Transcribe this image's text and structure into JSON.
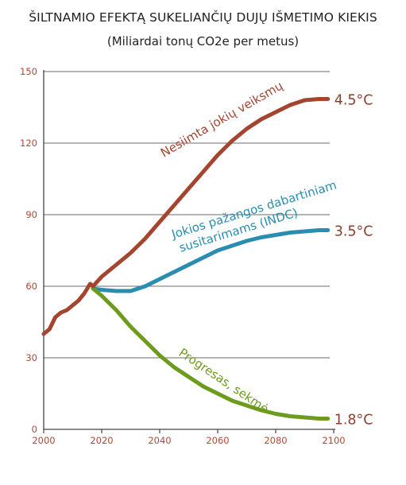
{
  "chart_data": {
    "type": "line",
    "title": "ŠILTNAMIO EFEKTĄ SUKELIANČIŲ DUJŲ IŠMETIMO KIEKIS",
    "subtitle": "(Miliardai tonų CO2e per metus)",
    "xlabel": "",
    "ylabel": "",
    "xlim": [
      2000,
      2100
    ],
    "ylim": [
      0,
      150
    ],
    "x_ticks": [
      "2000",
      "2020",
      "2040",
      "2060",
      "2080",
      "2100"
    ],
    "y_ticks": [
      "0",
      "30",
      "60",
      "90",
      "120",
      "150"
    ],
    "grid": "horizontal",
    "history": {
      "color": "#a5442f",
      "x": [
        2000,
        2002,
        2004,
        2006,
        2008,
        2010,
        2012,
        2014,
        2016,
        2017
      ],
      "y": [
        40,
        42,
        47,
        49,
        50,
        52,
        54,
        57,
        61,
        60
      ]
    },
    "series": [
      {
        "name": "Nesiimta jokių veiksmų",
        "end_label": "4.5°C",
        "color": "#a5442f",
        "x": [
          2017,
          2020,
          2025,
          2030,
          2035,
          2040,
          2045,
          2050,
          2055,
          2060,
          2065,
          2070,
          2075,
          2080,
          2085,
          2090,
          2095,
          2098
        ],
        "y": [
          60,
          64,
          69,
          74,
          80,
          87,
          94,
          101,
          108,
          115,
          121,
          126,
          130,
          133,
          136,
          138,
          138.5,
          138.5
        ]
      },
      {
        "name": "Jokios pažangos dabartiniam susitarimams (INDC)",
        "end_label": "3.5°C",
        "color": "#2a8db0",
        "x": [
          2017,
          2020,
          2025,
          2030,
          2035,
          2040,
          2045,
          2050,
          2055,
          2060,
          2065,
          2070,
          2075,
          2080,
          2085,
          2090,
          2095,
          2098
        ],
        "y": [
          59,
          58.5,
          58,
          58,
          60,
          63,
          66,
          69,
          72,
          75,
          77,
          79,
          80.5,
          81.5,
          82.5,
          83,
          83.5,
          83.5
        ]
      },
      {
        "name": "Progresas, sekmė",
        "end_label": "1.8°C",
        "color": "#6d9b1e",
        "x": [
          2017,
          2020,
          2025,
          2030,
          2035,
          2040,
          2045,
          2050,
          2055,
          2060,
          2065,
          2070,
          2075,
          2080,
          2085,
          2090,
          2095,
          2098
        ],
        "y": [
          59,
          56,
          50,
          43,
          37,
          31,
          26,
          22,
          18,
          15,
          12,
          10,
          8,
          6.5,
          5.5,
          5,
          4.5,
          4.5
        ]
      }
    ]
  }
}
